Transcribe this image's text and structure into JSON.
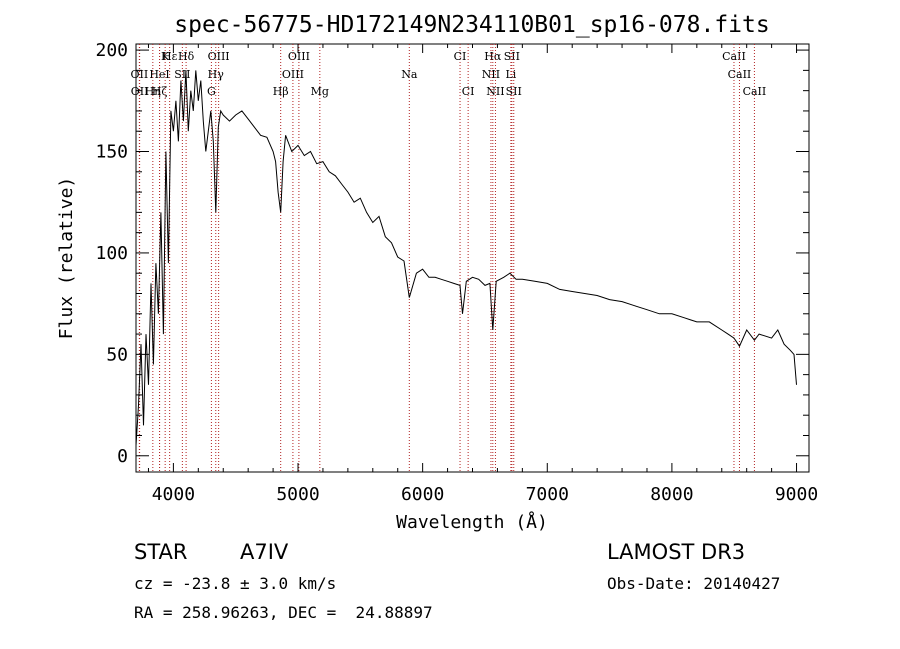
{
  "chart_data": {
    "type": "line",
    "title": "spec-56775-HD172149N234110B01_sp16-078.fits",
    "xlabel": "Wavelength (Å)",
    "ylabel": "Flux (relative)",
    "xlim": [
      3700,
      9100
    ],
    "ylim": [
      -8,
      203
    ],
    "xticks": [
      4000,
      5000,
      6000,
      7000,
      8000,
      9000
    ],
    "yticks": [
      0,
      50,
      100,
      150,
      200
    ],
    "grid": false,
    "line_color": "#000000",
    "marker_color": "#b22222",
    "series": [
      {
        "x": [
          3700,
          3720,
          3740,
          3760,
          3780,
          3800,
          3820,
          3840,
          3860,
          3880,
          3900,
          3920,
          3940,
          3960,
          3980,
          4000,
          4020,
          4040,
          4060,
          4080,
          4100,
          4120,
          4140,
          4160,
          4180,
          4200,
          4220,
          4240,
          4260,
          4280,
          4300,
          4320,
          4340,
          4360,
          4380,
          4400,
          4450,
          4500,
          4550,
          4600,
          4650,
          4700,
          4750,
          4800,
          4820,
          4840,
          4861,
          4880,
          4900,
          4950,
          5000,
          5050,
          5100,
          5150,
          5200,
          5250,
          5300,
          5350,
          5400,
          5450,
          5500,
          5550,
          5600,
          5650,
          5700,
          5750,
          5800,
          5850,
          5893,
          5950,
          6000,
          6050,
          6100,
          6150,
          6200,
          6250,
          6300,
          6320,
          6350,
          6400,
          6450,
          6500,
          6540,
          6563,
          6590,
          6650,
          6700,
          6750,
          6800,
          6900,
          7000,
          7100,
          7200,
          7300,
          7400,
          7500,
          7600,
          7700,
          7800,
          7900,
          8000,
          8100,
          8150,
          8200,
          8300,
          8400,
          8450,
          8498,
          8542,
          8600,
          8662,
          8700,
          8800,
          8850,
          8900,
          8950,
          8980,
          9000
        ],
        "values": [
          5,
          25,
          55,
          15,
          60,
          35,
          85,
          45,
          95,
          70,
          120,
          60,
          150,
          95,
          170,
          160,
          175,
          155,
          185,
          165,
          190,
          160,
          180,
          170,
          190,
          175,
          185,
          165,
          150,
          160,
          170,
          155,
          120,
          162,
          170,
          168,
          165,
          168,
          170,
          166,
          162,
          158,
          157,
          150,
          145,
          130,
          120,
          145,
          158,
          150,
          153,
          148,
          150,
          144,
          145,
          140,
          138,
          134,
          130,
          125,
          127,
          120,
          115,
          118,
          108,
          105,
          98,
          96,
          78,
          90,
          92,
          88,
          88,
          87,
          86,
          85,
          84,
          70,
          86,
          88,
          87,
          84,
          85,
          62,
          86,
          88,
          90,
          87,
          87,
          86,
          85,
          82,
          81,
          80,
          79,
          77,
          76,
          74,
          72,
          70,
          70,
          68,
          67,
          66,
          66,
          62,
          60,
          58,
          54,
          62,
          57,
          60,
          58,
          62,
          55,
          52,
          50,
          35
        ]
      }
    ],
    "lines": [
      {
        "label": "Hε",
        "wl": 3970,
        "row": 1
      },
      {
        "label": "K",
        "wl": 3934,
        "row": 1
      },
      {
        "label": "Hδ",
        "wl": 4102,
        "row": 1
      },
      {
        "label": "OIII",
        "wl": 4363,
        "row": 1
      },
      {
        "label": "OIII",
        "wl": 5007,
        "row": 1
      },
      {
        "label": "CI",
        "wl": 6300,
        "row": 1
      },
      {
        "label": "Hα",
        "wl": 6563,
        "row": 1
      },
      {
        "label": "SII",
        "wl": 6716,
        "row": 1
      },
      {
        "label": "CaII",
        "wl": 8498,
        "row": 1
      },
      {
        "label": "OII",
        "wl": 3727,
        "row": 2
      },
      {
        "label": "HeI",
        "wl": 3889,
        "row": 2
      },
      {
        "label": "SII",
        "wl": 4072,
        "row": 2
      },
      {
        "label": "Hγ",
        "wl": 4340,
        "row": 2
      },
      {
        "label": "OIII",
        "wl": 4959,
        "row": 2
      },
      {
        "label": "Na",
        "wl": 5893,
        "row": 2
      },
      {
        "label": "NII",
        "wl": 6548,
        "row": 2
      },
      {
        "label": "Li",
        "wl": 6708,
        "row": 2
      },
      {
        "label": "CaII",
        "wl": 8542,
        "row": 2
      },
      {
        "label": "OII",
        "wl": 3729,
        "row": 3
      },
      {
        "label": "Hη",
        "wl": 3835,
        "row": 3
      },
      {
        "label": "Hζ",
        "wl": 3889,
        "row": 3
      },
      {
        "label": "G",
        "wl": 4305,
        "row": 3
      },
      {
        "label": "Hβ",
        "wl": 4861,
        "row": 3
      },
      {
        "label": "Mg",
        "wl": 5175,
        "row": 3
      },
      {
        "label": "CI",
        "wl": 6365,
        "row": 3
      },
      {
        "label": "NII",
        "wl": 6584,
        "row": 3
      },
      {
        "label": "SII",
        "wl": 6731,
        "row": 3
      },
      {
        "label": "CaII",
        "wl": 8662,
        "row": 3
      }
    ]
  },
  "info": {
    "object_class": "STAR",
    "subclass": "A7IV",
    "survey": "LAMOST DR3",
    "cz": "cz = -23.8 ± 3.0 km/s",
    "obs_date": "Obs-Date: 20140427",
    "radec": "RA = 258.96263, DEC =  24.88897"
  }
}
